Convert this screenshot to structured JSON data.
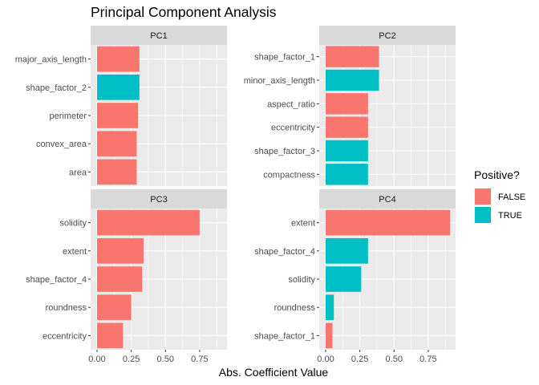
{
  "chart_data": {
    "type": "bar",
    "title": "Principal Component Analysis",
    "xlabel": "Abs. Coefficient Value",
    "ylabel": "",
    "xlim": [
      0,
      0.95
    ],
    "xticks": [
      0,
      0.25,
      0.5,
      0.75
    ],
    "xtick_labels": [
      "0.00",
      "0.25",
      "0.50",
      "0.75"
    ],
    "grid": true,
    "orientation": "horizontal",
    "legend": {
      "title": "Positive?",
      "position": "right",
      "entries": [
        {
          "label": "FALSE",
          "color": "#F8766D"
        },
        {
          "label": "TRUE",
          "color": "#00BFC4"
        }
      ]
    },
    "panels": [
      {
        "name": "PC1",
        "bars": [
          {
            "label": "major_axis_length",
            "value": 0.31,
            "positive": "FALSE"
          },
          {
            "label": "shape_factor_2",
            "value": 0.31,
            "positive": "TRUE"
          },
          {
            "label": "perimeter",
            "value": 0.3,
            "positive": "FALSE"
          },
          {
            "label": "convex_area",
            "value": 0.29,
            "positive": "FALSE"
          },
          {
            "label": "area",
            "value": 0.29,
            "positive": "FALSE"
          }
        ]
      },
      {
        "name": "PC2",
        "bars": [
          {
            "label": "shape_factor_1",
            "value": 0.39,
            "positive": "FALSE"
          },
          {
            "label": "minor_axis_length",
            "value": 0.39,
            "positive": "TRUE"
          },
          {
            "label": "aspect_ratio",
            "value": 0.31,
            "positive": "FALSE"
          },
          {
            "label": "eccentricity",
            "value": 0.31,
            "positive": "FALSE"
          },
          {
            "label": "shape_factor_3",
            "value": 0.31,
            "positive": "TRUE"
          },
          {
            "label": "compactness",
            "value": 0.31,
            "positive": "TRUE"
          }
        ]
      },
      {
        "name": "PC3",
        "bars": [
          {
            "label": "solidity",
            "value": 0.75,
            "positive": "FALSE"
          },
          {
            "label": "extent",
            "value": 0.34,
            "positive": "FALSE"
          },
          {
            "label": "shape_factor_4",
            "value": 0.33,
            "positive": "FALSE"
          },
          {
            "label": "roundness",
            "value": 0.25,
            "positive": "FALSE"
          },
          {
            "label": "eccentricity",
            "value": 0.19,
            "positive": "FALSE"
          }
        ]
      },
      {
        "name": "PC4",
        "bars": [
          {
            "label": "extent",
            "value": 0.91,
            "positive": "FALSE"
          },
          {
            "label": "shape_factor_4",
            "value": 0.31,
            "positive": "TRUE"
          },
          {
            "label": "solidity",
            "value": 0.26,
            "positive": "TRUE"
          },
          {
            "label": "roundness",
            "value": 0.06,
            "positive": "TRUE"
          },
          {
            "label": "shape_factor_1",
            "value": 0.05,
            "positive": "FALSE"
          }
        ]
      }
    ]
  }
}
